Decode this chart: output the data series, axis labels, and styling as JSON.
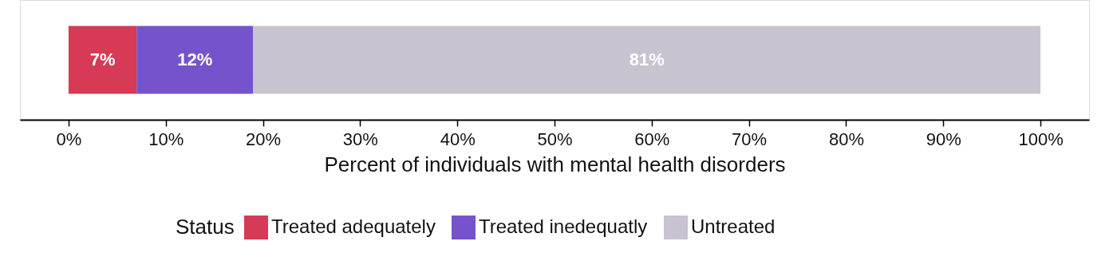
{
  "chart_data": {
    "type": "bar",
    "orientation": "horizontal",
    "stacked": true,
    "categories": [
      null
    ],
    "series": [
      {
        "name": "Treated adequately",
        "color": "#d63a55",
        "values": [
          7
        ],
        "value_labels": [
          "7%"
        ]
      },
      {
        "name": "Treated inedequatly",
        "color": "#7553cc",
        "values": [
          12
        ],
        "value_labels": [
          "12%"
        ]
      },
      {
        "name": "Untreated",
        "color": "#c9c3cf",
        "values": [
          81
        ],
        "value_labels": [
          "81%"
        ]
      }
    ],
    "xlabel": "Percent of individuals with mental health disorders",
    "legend_title": "Status",
    "legend": "bottom",
    "xlim": [
      -5,
      105
    ],
    "xticks": [
      {
        "value": 0,
        "label": "0%"
      },
      {
        "value": 10,
        "label": "10%"
      },
      {
        "value": 20,
        "label": "20%"
      },
      {
        "value": 30,
        "label": "30%"
      },
      {
        "value": 40,
        "label": "40%"
      },
      {
        "value": 50,
        "label": "50%"
      },
      {
        "value": 60,
        "label": "60%"
      },
      {
        "value": 70,
        "label": "70%"
      },
      {
        "value": 80,
        "label": "80%"
      },
      {
        "value": 90,
        "label": "90%"
      },
      {
        "value": 100,
        "label": "100%"
      }
    ],
    "grid": false
  }
}
